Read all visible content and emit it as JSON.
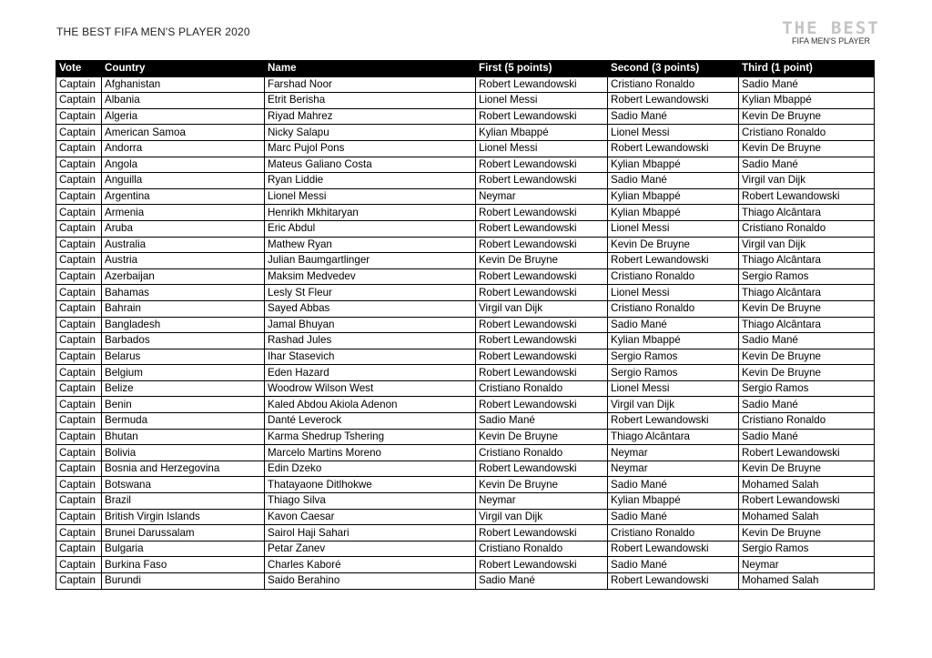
{
  "document": {
    "title": "THE BEST FIFA MEN'S PLAYER 2020",
    "logo": {
      "line1": "THE BEST",
      "line2": "FIFA MEN'S PLAYER"
    }
  },
  "table": {
    "headers": [
      "Vote",
      "Country",
      "Name",
      "First (5 points)",
      "Second (3 points)",
      "Third (1 point)"
    ],
    "rows": [
      [
        "Captain",
        "Afghanistan",
        "Farshad Noor",
        "Robert Lewandowski",
        "Cristiano Ronaldo",
        "Sadio Mané"
      ],
      [
        "Captain",
        "Albania",
        "Etrit Berisha",
        "Lionel Messi",
        "Robert Lewandowski",
        "Kylian Mbappé"
      ],
      [
        "Captain",
        "Algeria",
        "Riyad Mahrez",
        "Robert Lewandowski",
        "Sadio Mané",
        "Kevin De Bruyne"
      ],
      [
        "Captain",
        "American Samoa",
        "Nicky Salapu",
        "Kylian Mbappé",
        "Lionel Messi",
        "Cristiano Ronaldo"
      ],
      [
        "Captain",
        "Andorra",
        "Marc Pujol Pons",
        "Lionel Messi",
        "Robert Lewandowski",
        "Kevin De Bruyne"
      ],
      [
        "Captain",
        "Angola",
        "Mateus Galiano Costa",
        "Robert Lewandowski",
        "Kylian Mbappé",
        "Sadio Mané"
      ],
      [
        "Captain",
        "Anguilla",
        "Ryan Liddie",
        "Robert Lewandowski",
        "Sadio Mané",
        "Virgil van Dijk"
      ],
      [
        "Captain",
        "Argentina",
        "Lionel Messi",
        "Neymar",
        "Kylian Mbappé",
        "Robert Lewandowski"
      ],
      [
        "Captain",
        "Armenia",
        "Henrikh Mkhitaryan",
        "Robert Lewandowski",
        "Kylian Mbappé",
        "Thiago Alcântara"
      ],
      [
        "Captain",
        "Aruba",
        "Eric Abdul",
        "Robert Lewandowski",
        "Lionel Messi",
        "Cristiano Ronaldo"
      ],
      [
        "Captain",
        "Australia",
        "Mathew Ryan",
        "Robert Lewandowski",
        "Kevin De Bruyne",
        "Virgil van Dijk"
      ],
      [
        "Captain",
        "Austria",
        "Julian Baumgartlinger",
        "Kevin De Bruyne",
        "Robert Lewandowski",
        "Thiago Alcântara"
      ],
      [
        "Captain",
        "Azerbaijan",
        "Maksim Medvedev",
        "Robert Lewandowski",
        "Cristiano Ronaldo",
        "Sergio Ramos"
      ],
      [
        "Captain",
        "Bahamas",
        "Lesly St Fleur",
        "Robert Lewandowski",
        "Lionel Messi",
        "Thiago Alcântara"
      ],
      [
        "Captain",
        "Bahrain",
        "Sayed Abbas",
        "Virgil van Dijk",
        "Cristiano Ronaldo",
        "Kevin De Bruyne"
      ],
      [
        "Captain",
        "Bangladesh",
        "Jamal Bhuyan",
        "Robert Lewandowski",
        "Sadio Mané",
        "Thiago Alcântara"
      ],
      [
        "Captain",
        "Barbados",
        "Rashad Jules",
        "Robert Lewandowski",
        "Kylian Mbappé",
        "Sadio Mané"
      ],
      [
        "Captain",
        "Belarus",
        "Ihar Stasevich",
        "Robert Lewandowski",
        "Sergio Ramos",
        "Kevin De Bruyne"
      ],
      [
        "Captain",
        "Belgium",
        "Eden Hazard",
        "Robert Lewandowski",
        "Sergio Ramos",
        "Kevin De Bruyne"
      ],
      [
        "Captain",
        "Belize",
        "Woodrow Wilson West",
        "Cristiano Ronaldo",
        "Lionel Messi",
        "Sergio Ramos"
      ],
      [
        "Captain",
        "Benin",
        "Kaled Abdou Akiola Adenon",
        "Robert Lewandowski",
        "Virgil van Dijk",
        "Sadio Mané"
      ],
      [
        "Captain",
        "Bermuda",
        "Danté Leverock",
        "Sadio Mané",
        "Robert Lewandowski",
        "Cristiano Ronaldo"
      ],
      [
        "Captain",
        "Bhutan",
        "Karma Shedrup Tshering",
        "Kevin De Bruyne",
        "Thiago Alcântara",
        "Sadio Mané"
      ],
      [
        "Captain",
        "Bolivia",
        "Marcelo Martins Moreno",
        "Cristiano Ronaldo",
        "Neymar",
        "Robert Lewandowski"
      ],
      [
        "Captain",
        "Bosnia and Herzegovina",
        "Edin Dzeko",
        "Robert Lewandowski",
        "Neymar",
        "Kevin De Bruyne"
      ],
      [
        "Captain",
        "Botswana",
        "Thatayaone Ditlhokwe",
        "Kevin De Bruyne",
        "Sadio Mané",
        "Mohamed Salah"
      ],
      [
        "Captain",
        "Brazil",
        "Thiago Silva",
        "Neymar",
        "Kylian Mbappé",
        "Robert Lewandowski"
      ],
      [
        "Captain",
        "British Virgin Islands",
        "Kavon Caesar",
        "Virgil van Dijk",
        "Sadio Mané",
        "Mohamed Salah"
      ],
      [
        "Captain",
        "Brunei Darussalam",
        "Sairol Haji Sahari",
        "Robert Lewandowski",
        "Cristiano Ronaldo",
        "Kevin De Bruyne"
      ],
      [
        "Captain",
        "Bulgaria",
        "Petar Zanev",
        "Cristiano Ronaldo",
        "Robert Lewandowski",
        "Sergio Ramos"
      ],
      [
        "Captain",
        "Burkina Faso",
        "Charles Kaboré",
        "Robert Lewandowski",
        "Sadio Mané",
        "Neymar"
      ],
      [
        "Captain",
        "Burundi",
        "Saido Berahino",
        "Sadio Mané",
        "Robert Lewandowski",
        "Mohamed Salah"
      ]
    ]
  }
}
